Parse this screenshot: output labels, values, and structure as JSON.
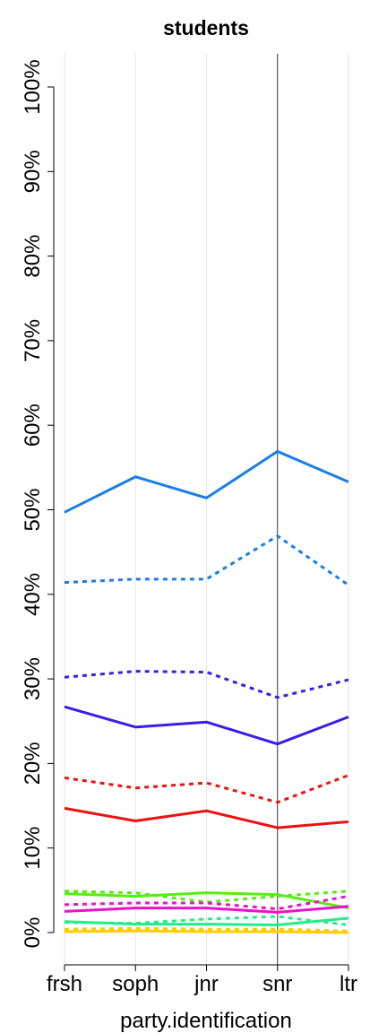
{
  "chart_data": {
    "type": "line",
    "title": "students",
    "xlabel": "party.identification",
    "ylabel": "",
    "categories": [
      "frsh",
      "soph",
      "jnr",
      "snr",
      "ltr"
    ],
    "y_tick_labels": [
      "0%",
      "10%",
      "20%",
      "30%",
      "40%",
      "50%",
      "60%",
      "70%",
      "80%",
      "90%",
      "100%"
    ],
    "ylim": [
      -4,
      105
    ],
    "grid": "vertical lines at each category",
    "reference_line_category": "snr",
    "series": [
      {
        "color": "#1A7EEA",
        "dash": "solid",
        "values": [
          49.7,
          53.9,
          51.4,
          56.9,
          53.3
        ]
      },
      {
        "color": "#1A7EEA",
        "dash": "dotted",
        "values": [
          41.4,
          41.8,
          41.8,
          46.9,
          41.1
        ]
      },
      {
        "color": "#3A1CEB",
        "dash": "dotted",
        "values": [
          30.2,
          30.9,
          30.8,
          27.8,
          29.9
        ]
      },
      {
        "color": "#3A1CEB",
        "dash": "solid",
        "values": [
          26.7,
          24.3,
          24.9,
          22.3,
          25.5
        ]
      },
      {
        "color": "#EE1111",
        "dash": "dotted",
        "values": [
          18.3,
          17.1,
          17.7,
          15.4,
          18.6
        ]
      },
      {
        "color": "#EE1111",
        "dash": "solid",
        "values": [
          14.7,
          13.2,
          14.4,
          12.4,
          13.1
        ]
      },
      {
        "color": "#55EE11",
        "dash": "dotted",
        "values": [
          4.9,
          4.7,
          3.6,
          4.3,
          4.9
        ]
      },
      {
        "color": "#55EE11",
        "dash": "solid",
        "values": [
          4.6,
          4.3,
          4.7,
          4.5,
          2.9
        ]
      },
      {
        "color": "#EE11CC",
        "dash": "dotted",
        "values": [
          3.3,
          3.5,
          3.5,
          2.8,
          4.3
        ]
      },
      {
        "color": "#EE11CC",
        "dash": "solid",
        "values": [
          2.5,
          2.9,
          2.9,
          2.4,
          3.1
        ]
      },
      {
        "color": "#22EE88",
        "dash": "dotted",
        "values": [
          1.2,
          1.1,
          1.6,
          1.9,
          0.9
        ]
      },
      {
        "color": "#22EE88",
        "dash": "solid",
        "values": [
          1.3,
          1.0,
          1.0,
          0.9,
          1.7
        ]
      },
      {
        "color": "#FFCC00",
        "dash": "dotted",
        "values": [
          0.4,
          0.5,
          0.4,
          0.4,
          0.2
        ]
      },
      {
        "color": "#FFCC00",
        "dash": "solid",
        "values": [
          0.1,
          0.2,
          0.1,
          0.1,
          0.0
        ]
      }
    ]
  }
}
